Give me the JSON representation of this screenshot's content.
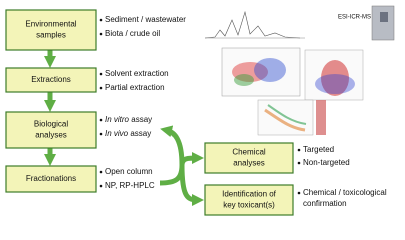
{
  "instrument_label": "ESI-ICR-MS",
  "nodes": [
    {
      "label": [
        "Environmental",
        "samples"
      ],
      "bullets": [
        {
          "text": "Sediment / wastewater"
        },
        {
          "text": "Biota / crude oil"
        }
      ]
    },
    {
      "label": [
        "Extractions"
      ],
      "bullets": [
        {
          "text": "Solvent extraction"
        },
        {
          "text": "Partial extraction"
        }
      ]
    },
    {
      "label": [
        "Biological",
        "analyses"
      ],
      "bullets": [
        {
          "em": "In vitro",
          "text": " assay"
        },
        {
          "em": "In vivo",
          "text": " assay"
        }
      ]
    },
    {
      "label": [
        "Fractionations"
      ],
      "bullets": [
        {
          "text": "Open column"
        },
        {
          "text": "NP, RP-HPLC"
        }
      ]
    },
    {
      "label": [
        "Chemical",
        "analyses"
      ],
      "bullets": [
        {
          "text": "Targeted"
        },
        {
          "text": "Non-targeted"
        }
      ]
    },
    {
      "label": [
        "Identification of",
        "key toxicant(s)"
      ],
      "bullets": [
        {
          "text": "Chemical / toxicological"
        },
        {
          "cont": "confirmation"
        }
      ]
    }
  ]
}
